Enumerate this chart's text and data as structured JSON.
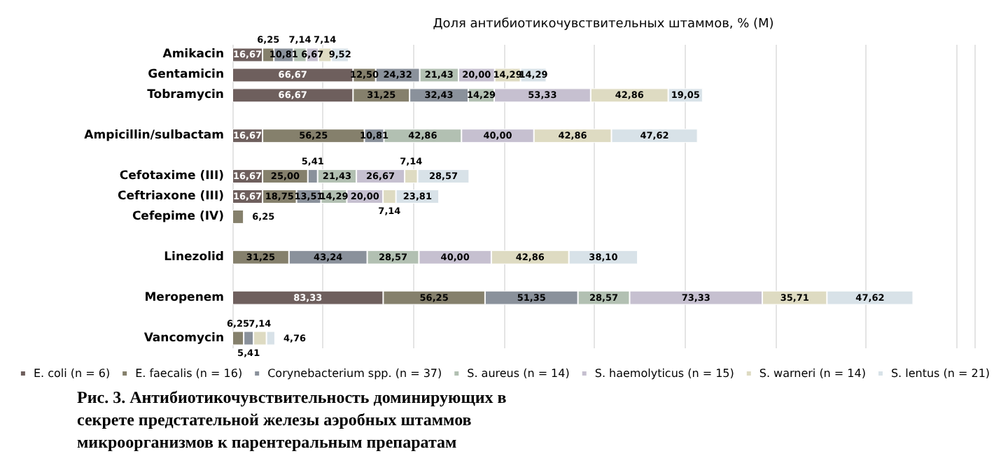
{
  "chart_data": {
    "type": "bar",
    "orientation": "horizontal",
    "stacked": true,
    "grid": "x",
    "legend": "bottom",
    "tick_labels": "y",
    "xlabel": "Доля антибиотикочувствительных штаммов, % (M)",
    "annotations": [
      "Рис. 3. Антибиотикочувствительность доминирующих в секрете предстательной железы аэробных штаммов микроорганизмов к парентеральным препаратам"
    ],
    "categories": [
      "Amikacin",
      "Gentamicin",
      "Tobramycin",
      null,
      "Ampicillin/sulbactam",
      null,
      "Cefotaxime (III)",
      "Ceftriaxone (III)",
      "Cefepime (IV)",
      null,
      "Linezolid",
      null,
      "Meropenem",
      null,
      "Vancomycin"
    ],
    "series": [
      {
        "name": "E. coli (n = 6)",
        "color": "#6e5f5d",
        "values": [
          16.67,
          66.67,
          66.67,
          null,
          16.67,
          null,
          16.67,
          16.67,
          null,
          null,
          null,
          null,
          83.33,
          null,
          null
        ],
        "value_labels": [
          "16,67",
          "66,67",
          "66,67",
          null,
          "16,67",
          null,
          "16,67",
          "16,67",
          null,
          null,
          null,
          null,
          "83,33",
          null,
          null
        ]
      },
      {
        "name": "E. faecalis (n = 16)",
        "color": "#85806c",
        "values": [
          6.25,
          12.5,
          31.25,
          null,
          56.25,
          null,
          25,
          18.75,
          6.25,
          null,
          31.25,
          null,
          56.25,
          null,
          6.25
        ],
        "value_labels": [
          "6,25",
          "12,50",
          "31,25",
          null,
          "56,25",
          null,
          "25,00",
          "18,75",
          "6,25",
          null,
          "31,25",
          null,
          "56,25",
          null,
          "6,25"
        ]
      },
      {
        "name": "Corynebacterium spp. (n = 37)",
        "color": "#8a919b",
        "values": [
          10.81,
          24.32,
          32.43,
          null,
          10.81,
          null,
          5.41,
          13.51,
          null,
          null,
          43.24,
          null,
          51.35,
          null,
          5.41
        ],
        "value_labels": [
          "10,81",
          "24,32",
          "32,43",
          null,
          "10,81",
          null,
          "5,41",
          "13,51",
          null,
          null,
          "43,24",
          null,
          "51,35",
          null,
          "5,41"
        ]
      },
      {
        "name": "S. aureus (n = 14)",
        "color": "#b2c0b2",
        "values": [
          7.14,
          21.43,
          14.29,
          null,
          42.86,
          null,
          21.43,
          14.29,
          null,
          null,
          28.57,
          null,
          28.57,
          null,
          null
        ],
        "value_labels": [
          "7,14",
          "21,43",
          "14,29",
          null,
          "42,86",
          null,
          "21,43",
          "14,29",
          null,
          null,
          "28,57",
          null,
          "28,57",
          null,
          null
        ]
      },
      {
        "name": "S. haemolyticus (n = 15)",
        "color": "#c6c0d0",
        "values": [
          6.67,
          20,
          53.33,
          null,
          40,
          null,
          26.67,
          20,
          null,
          null,
          40,
          null,
          73.33,
          null,
          null
        ],
        "value_labels": [
          "6,67",
          "20,00",
          "53,33",
          null,
          "40,00",
          null,
          "26,67",
          "20,00",
          null,
          null,
          "40,00",
          null,
          "73,33",
          null,
          null
        ]
      },
      {
        "name": "S. warneri (n = 14)",
        "color": "#dedbc2",
        "values": [
          7.14,
          14.29,
          42.86,
          null,
          42.86,
          null,
          7.14,
          7.14,
          null,
          null,
          42.86,
          null,
          35.71,
          null,
          7.14
        ],
        "value_labels": [
          "7,14",
          "14,29",
          "42,86",
          null,
          "42,86",
          null,
          "7,14",
          "7,14",
          null,
          null,
          "42,86",
          null,
          "35,71",
          null,
          "7,14"
        ]
      },
      {
        "name": "S. lentus (n = 21)",
        "color": "#d8e2e8",
        "values": [
          9.52,
          14.29,
          19.05,
          null,
          47.62,
          null,
          28.57,
          23.81,
          null,
          null,
          38.1,
          null,
          47.62,
          null,
          4.76
        ],
        "value_labels": [
          "9,52",
          "14,29",
          "19,05",
          null,
          "47,62",
          null,
          "28,57",
          "23,81",
          null,
          null,
          "38,10",
          null,
          "47,62",
          null,
          "4,76"
        ]
      }
    ]
  }
}
